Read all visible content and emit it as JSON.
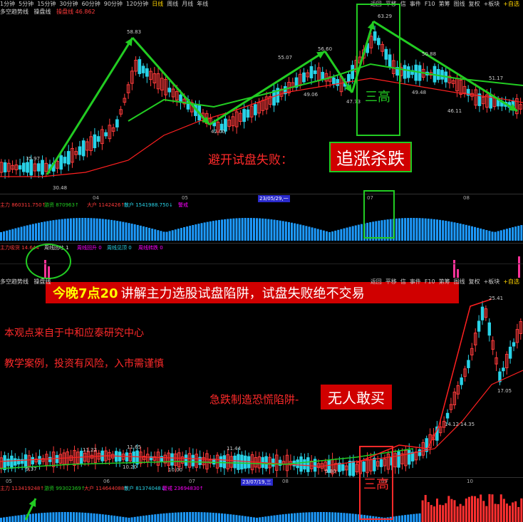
{
  "toolbar": {
    "periods": [
      "1分钟",
      "5分钟",
      "15分钟",
      "30分钟",
      "60分钟",
      "90分钟",
      "120分钟",
      "日线",
      "周线",
      "月线",
      "年线"
    ],
    "right_tabs": [
      "返回",
      "平移",
      "信",
      "事件",
      "F10",
      "第筹",
      "图线",
      "复权",
      "+板块",
      "+自选"
    ],
    "overlay_labels": [
      "多空趋势线",
      "操盘线"
    ],
    "score_label": "操盘线 46.862"
  },
  "top_chart": {
    "price_labels": [
      "58.83",
      "63.29",
      "55.07",
      "56.60",
      "49.06",
      "47.73",
      "42.00",
      "51.17",
      "49.48",
      "46.11",
      "35.97",
      "30.48",
      "50.88"
    ],
    "date_labels": [
      "04",
      "05",
      "23/05/29,一",
      "07",
      "08"
    ],
    "indicator_row1": [
      "主力 860311.750↑",
      "游资 870963↑",
      "大户 1142426↑",
      "散户 1541988.750↓",
      "警戒"
    ],
    "indicator_row2": [
      "主力吸货 14.644",
      "周线回吐 1",
      "周线回升 0",
      "周线见顶 0",
      "周线转跌 0"
    ]
  },
  "bottom_chart": {
    "price_labels": [
      "25.41",
      "11.22",
      "11.65",
      "11.44",
      "10.20",
      "10.00",
      "9.80",
      "9.37",
      "17.05",
      "14.12",
      "14.35"
    ],
    "date_labels": [
      "05",
      "06",
      "07",
      "23/07/19,三",
      "08",
      "09",
      "10"
    ],
    "indicator_row1": [
      "主力 113419248↑",
      "游资 99302369↑",
      "大户 114644088↑",
      "散户 81374048↓",
      "警戒 23694830↑"
    ]
  },
  "annotations": {
    "san_gao": "三高",
    "avoid_label": "避开试盘失败：",
    "chase_label": "追涨杀跌",
    "tonight_prefix": "今晚7点20",
    "tonight_rest": "讲解主力选股试盘陷阱，试盘失败绝不交易",
    "source": "本观点来自于中和应泰研究中心",
    "disclaimer": "教学案例，投资有风险，入市需谨慎",
    "drop_label": "急跌制造恐慌陷阱-",
    "no_buy": "无人敢买"
  },
  "colors": {
    "up": "#ff3b3b",
    "down": "#29d3e8",
    "green": "#22cc22",
    "magenta": "#ff00ff",
    "annotation_red": "#d00000"
  }
}
